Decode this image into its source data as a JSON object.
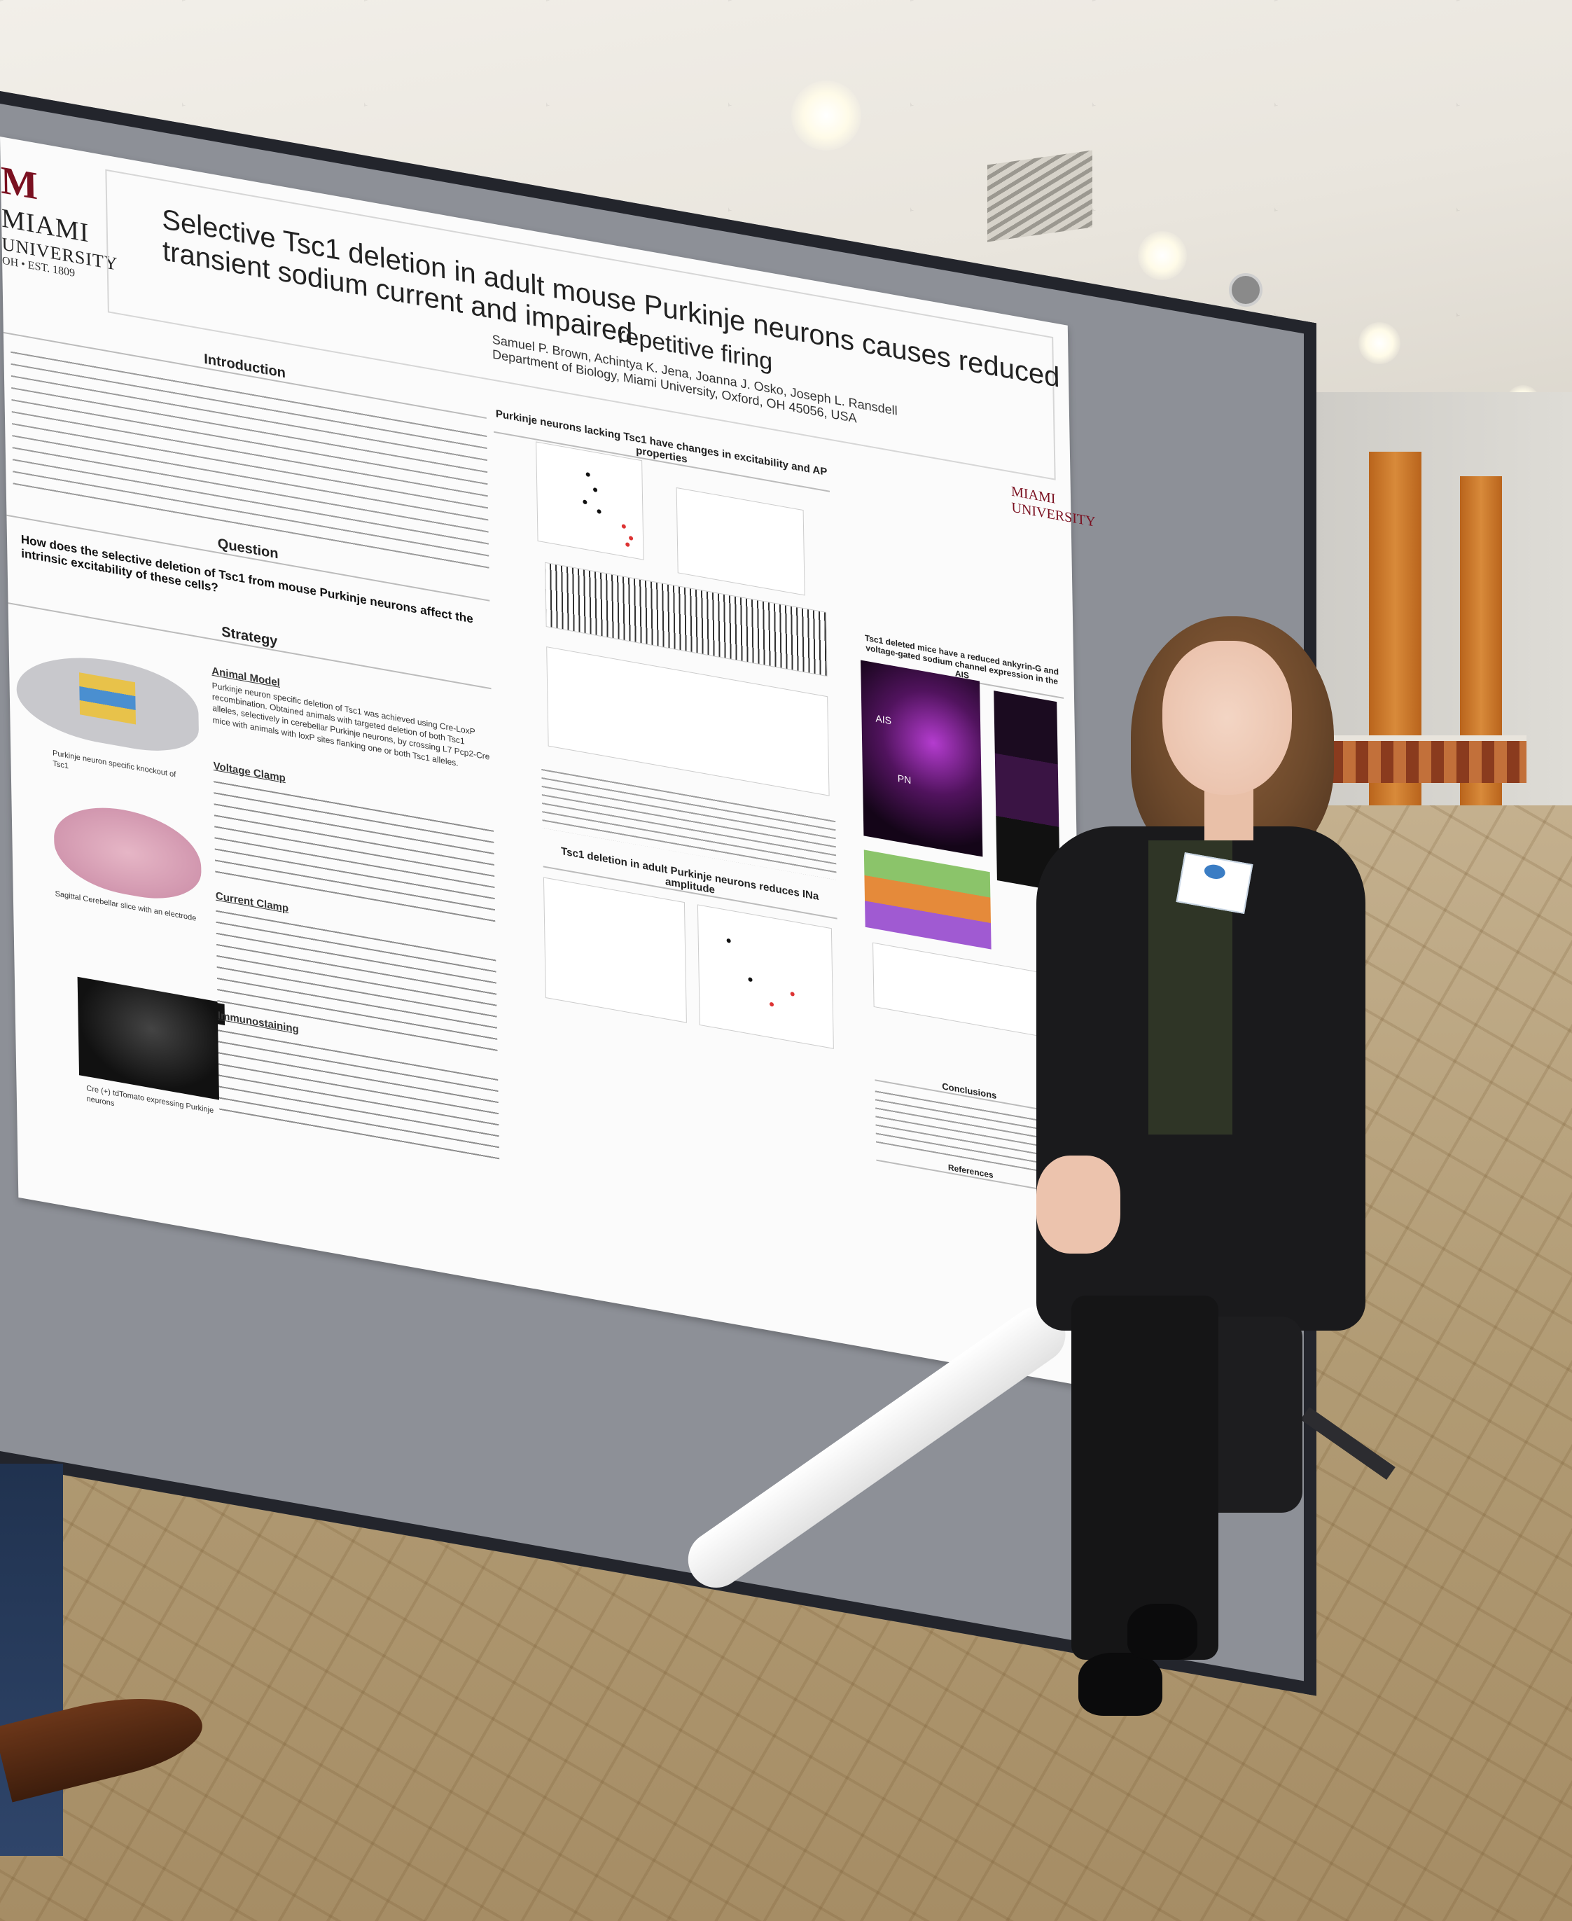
{
  "poster": {
    "logo_mark": "M",
    "logo_name": "MIAMI",
    "logo_sub": "UNIVERSITY",
    "logo_est": "OH • EST. 1809",
    "title_line1": "Selective Tsc1 deletion in adult mouse Purkinje neurons causes reduced transient sodium current and impaired",
    "title_line2": "repetitive firing",
    "authors": "Samuel P. Brown, Achintya K. Jena, Joanna J. Osko, Joseph L. Ransdell",
    "affiliation": "Department of Biology, Miami University, Oxford, OH 45056, USA",
    "logo2": "MIAMI UNIVERSITY",
    "sections": {
      "introduction": "Introduction",
      "question": "Question",
      "strategy": "Strategy",
      "results1": "Purkinje neurons lacking Tsc1 have changes in excitability and AP properties",
      "results2": "Tsc1 deletion in adult Purkinje neurons reduces INa amplitude",
      "results3": "Tsc1 deleted mice have a reduced ankyrin-G and voltage-gated sodium channel expression in the AIS",
      "conclusions": "Conclusions",
      "references": "References"
    },
    "question_text": "How does the selective deletion of Tsc1 from mouse Purkinje neurons affect the intrinsic excitability of these cells?",
    "strategy_headings": [
      "Animal Model",
      "Voltage Clamp",
      "Current Clamp",
      "Immunostaining"
    ],
    "animal_model_text": "Purkinje neuron specific deletion of Tsc1 was achieved using Cre-LoxP recombination. Obtained animals with targeted deletion of both Tsc1 alleles, selectively in cerebellar Purkinje neurons, by crossing L7 Pcp2-Cre mice with animals with loxP sites flanking one or both Tsc1 alleles.",
    "captions": [
      "Purkinje neuron specific knockout of Tsc1",
      "Sagittal Cerebellar slice with an electrode",
      "Cre (+) tdTomato expressing Purkinje neurons"
    ],
    "image_labels": [
      "AIS",
      "PN"
    ]
  },
  "badge": {
    "label": ""
  }
}
